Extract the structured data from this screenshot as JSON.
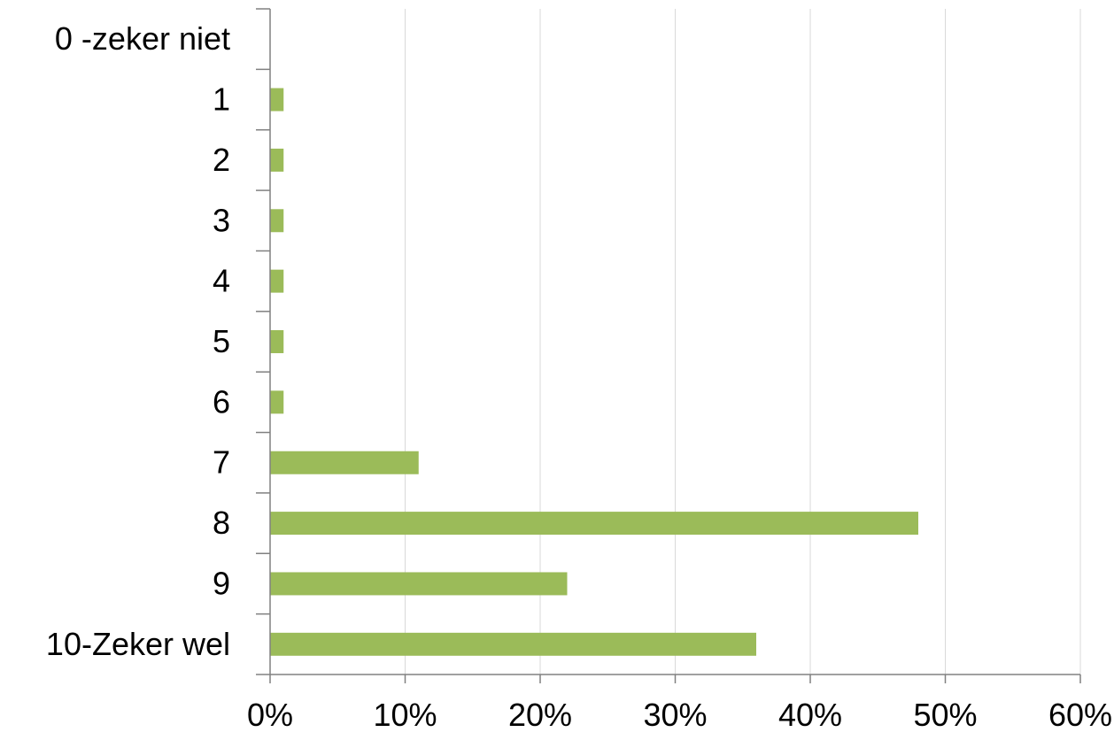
{
  "chart_data": {
    "type": "bar",
    "orientation": "horizontal",
    "categories": [
      "0 -zeker niet",
      "1",
      "2",
      "3",
      "4",
      "5",
      "6",
      "7",
      "8",
      "9",
      "10-Zeker wel"
    ],
    "values": [
      0,
      1,
      1,
      1,
      1,
      1,
      1,
      11,
      48,
      22,
      36
    ],
    "xlim": [
      0,
      60
    ],
    "x_ticks": [
      0,
      10,
      20,
      30,
      40,
      50,
      60
    ],
    "x_tick_format": "percent",
    "grid": "vertical",
    "legend": "none",
    "bar_color": "#9BBB59",
    "grid_color": "#D9D9D9",
    "axis_color": "#808080"
  }
}
